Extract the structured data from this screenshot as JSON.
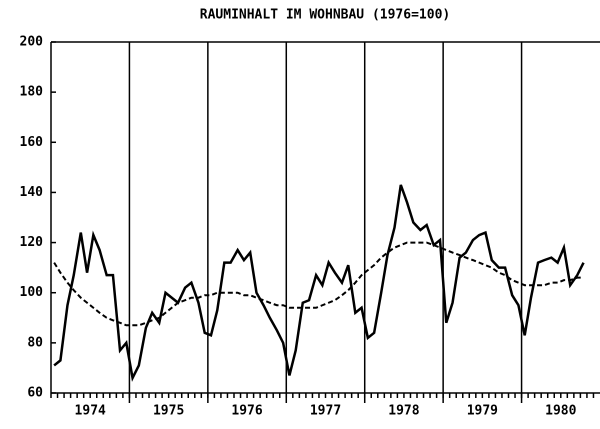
{
  "chart_data": {
    "type": "line",
    "title": "RAUMINHALT IM WOHNBAU (1976=100)",
    "x": [
      1974.04,
      1974.12,
      1974.21,
      1974.29,
      1974.38,
      1974.46,
      1974.54,
      1974.62,
      1974.71,
      1974.79,
      1974.88,
      1974.96,
      1975.04,
      1975.12,
      1975.21,
      1975.29,
      1975.38,
      1975.46,
      1975.54,
      1975.62,
      1975.71,
      1975.79,
      1975.88,
      1975.96,
      1976.04,
      1976.12,
      1976.21,
      1976.29,
      1976.38,
      1976.46,
      1976.54,
      1976.62,
      1976.71,
      1976.79,
      1976.88,
      1976.96,
      1977.04,
      1977.12,
      1977.21,
      1977.29,
      1977.38,
      1977.46,
      1977.54,
      1977.62,
      1977.71,
      1977.79,
      1977.88,
      1977.96,
      1978.04,
      1978.12,
      1978.21,
      1978.29,
      1978.38,
      1978.46,
      1978.54,
      1978.62,
      1978.71,
      1978.79,
      1978.88,
      1978.96,
      1979.04,
      1979.12,
      1979.21,
      1979.29,
      1979.38,
      1979.46,
      1979.54,
      1979.62,
      1979.71,
      1979.79,
      1979.88,
      1979.96,
      1980.04,
      1980.12,
      1980.21,
      1980.29,
      1980.38,
      1980.46,
      1980.54,
      1980.62,
      1980.71,
      1980.79
    ],
    "series": [
      {
        "color": "#000000",
        "dash": false,
        "values": [
          71,
          73,
          95,
          107,
          124,
          108,
          123,
          117,
          107,
          107,
          77,
          80,
          66,
          71,
          86,
          92,
          88,
          100,
          98,
          96,
          102,
          104,
          96,
          84,
          83,
          93,
          112,
          112,
          117,
          113,
          116,
          100,
          95,
          90,
          85,
          80,
          67,
          77,
          96,
          97,
          107,
          103,
          112,
          108,
          104,
          111,
          92,
          94,
          82,
          84,
          100,
          115,
          126,
          143,
          136,
          128,
          125,
          127,
          119,
          121,
          88,
          96,
          114,
          116,
          121,
          123,
          124,
          113,
          110,
          110,
          99,
          95,
          83,
          98,
          112,
          113,
          114,
          112,
          118,
          103,
          107,
          112
        ]
      },
      {
        "color": "#000000",
        "dash": true,
        "values": [
          112,
          108,
          104,
          101,
          98,
          96,
          94,
          92,
          90,
          89,
          88,
          87,
          87,
          87,
          88,
          89,
          90,
          92,
          94,
          96,
          97,
          98,
          98,
          99,
          99,
          100,
          100,
          100,
          100,
          99,
          99,
          98,
          97,
          96,
          95,
          95,
          94,
          94,
          94,
          94,
          94,
          95,
          96,
          97,
          99,
          101,
          104,
          107,
          109,
          111,
          114,
          116,
          118,
          119,
          120,
          120,
          120,
          120,
          119,
          118,
          117,
          116,
          115,
          114,
          113,
          112,
          111,
          110,
          108,
          107,
          105,
          104,
          103,
          103,
          103,
          103,
          104,
          104,
          105,
          105,
          106,
          106
        ]
      }
    ],
    "xlim": [
      1974,
      1981
    ],
    "xticks": [
      1975,
      1976,
      1977,
      1978,
      1979,
      1980
    ],
    "xlabels": [
      {
        "value": 1974.5,
        "label": "1974"
      },
      {
        "value": 1975.5,
        "label": "1975"
      },
      {
        "value": 1976.5,
        "label": "1976"
      },
      {
        "value": 1977.5,
        "label": "1977"
      },
      {
        "value": 1978.5,
        "label": "1978"
      },
      {
        "value": 1979.5,
        "label": "1979"
      },
      {
        "value": 1980.5,
        "label": "1980"
      }
    ],
    "ylim": [
      60,
      200
    ],
    "yticks": [
      60,
      80,
      100,
      120,
      140,
      160,
      180,
      200
    ]
  }
}
